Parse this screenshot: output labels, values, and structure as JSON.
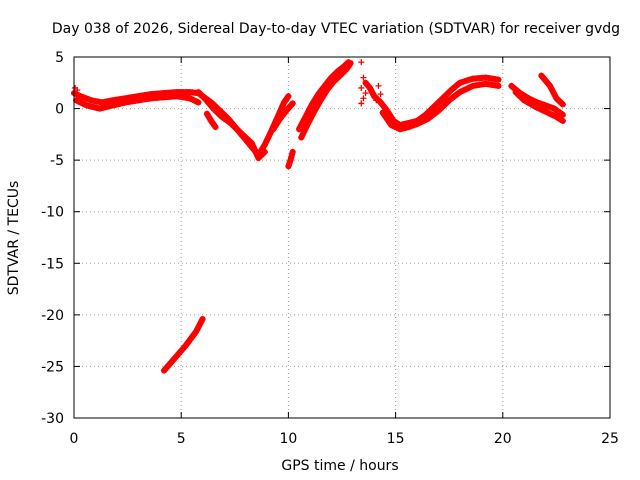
{
  "colors": {
    "series": "#ff0000",
    "grid": "#a0a0a0",
    "axis": "#000000"
  },
  "chart_data": {
    "type": "scatter",
    "title": "Day 038 of 2026, Sidereal Day-to-day VTEC variation (SDTVAR) for receiver gvdg",
    "xlabel": "GPS time / hours",
    "ylabel": "SDTVAR / TECUs",
    "xlim": [
      0,
      25
    ],
    "ylim": [
      -30,
      5
    ],
    "xticks": [
      0,
      5,
      10,
      15,
      20,
      25
    ],
    "yticks": [
      5,
      0,
      -5,
      -10,
      -15,
      -20,
      -25,
      -30
    ],
    "grid": true,
    "marker": "+",
    "series": [
      {
        "name": "SDTVAR",
        "segments": [
          [
            [
              0.0,
              1.5
            ],
            [
              0.3,
              1.2
            ],
            [
              0.8,
              0.8
            ],
            [
              1.3,
              0.6
            ],
            [
              1.8,
              0.8
            ],
            [
              2.4,
              1.0
            ],
            [
              3.0,
              1.2
            ],
            [
              3.6,
              1.4
            ],
            [
              4.2,
              1.5
            ],
            [
              4.8,
              1.6
            ],
            [
              5.4,
              1.6
            ],
            [
              5.8,
              1.5
            ],
            [
              6.0,
              1.2
            ],
            [
              6.4,
              0.6
            ],
            [
              6.8,
              -0.2
            ],
            [
              7.2,
              -1.0
            ],
            [
              7.6,
              -2.0
            ],
            [
              8.0,
              -3.0
            ],
            [
              8.4,
              -4.0
            ],
            [
              8.6,
              -4.5
            ],
            [
              8.9,
              -3.5
            ],
            [
              9.2,
              -2.2
            ],
            [
              9.5,
              -0.8
            ],
            [
              9.8,
              0.6
            ],
            [
              10.0,
              1.2
            ]
          ],
          [
            [
              0.1,
              0.8
            ],
            [
              0.6,
              0.3
            ],
            [
              1.2,
              0.0
            ],
            [
              1.8,
              0.3
            ],
            [
              2.4,
              0.6
            ],
            [
              3.0,
              0.8
            ],
            [
              3.6,
              1.0
            ],
            [
              4.2,
              1.1
            ],
            [
              4.8,
              1.2
            ],
            [
              5.4,
              1.0
            ],
            [
              5.8,
              0.6
            ]
          ],
          [
            [
              5.8,
              1.6
            ],
            [
              6.1,
              1.0
            ],
            [
              6.5,
              0.0
            ],
            [
              6.9,
              -0.8
            ],
            [
              7.3,
              -1.4
            ],
            [
              7.8,
              -2.4
            ],
            [
              8.3,
              -3.4
            ],
            [
              8.6,
              -4.8
            ],
            [
              8.9,
              -4.2
            ]
          ],
          [
            [
              6.2,
              -0.5
            ],
            [
              6.4,
              -1.2
            ],
            [
              6.6,
              -1.8
            ]
          ],
          [
            [
              9.3,
              -2.0
            ],
            [
              9.6,
              -1.0
            ],
            [
              9.9,
              -0.2
            ],
            [
              10.2,
              0.5
            ]
          ],
          [
            [
              10.6,
              -2.8
            ],
            [
              10.9,
              -1.5
            ],
            [
              11.2,
              -0.3
            ],
            [
              11.5,
              0.8
            ],
            [
              11.8,
              1.8
            ],
            [
              12.1,
              2.6
            ],
            [
              12.4,
              3.2
            ],
            [
              12.7,
              3.8
            ],
            [
              12.9,
              4.4
            ]
          ],
          [
            [
              10.5,
              -2.0
            ],
            [
              10.8,
              -0.8
            ],
            [
              11.1,
              0.4
            ],
            [
              11.4,
              1.4
            ],
            [
              11.7,
              2.2
            ],
            [
              12.0,
              3.0
            ],
            [
              12.3,
              3.6
            ],
            [
              12.6,
              4.1
            ],
            [
              12.8,
              4.5
            ]
          ],
          [
            [
              10.2,
              -4.2
            ],
            [
              10.1,
              -5.0
            ],
            [
              10.0,
              -5.6
            ]
          ],
          [
            [
              13.6,
              2.5
            ],
            [
              13.8,
              2.0
            ],
            [
              14.0,
              1.2
            ],
            [
              14.3,
              0.6
            ],
            [
              14.6,
              -0.2
            ],
            [
              14.9,
              -1.2
            ],
            [
              15.2,
              -1.6
            ],
            [
              15.6,
              -1.4
            ],
            [
              16.0,
              -1.2
            ],
            [
              16.4,
              -0.6
            ],
            [
              16.8,
              0.2
            ],
            [
              17.2,
              1.0
            ],
            [
              17.6,
              1.8
            ],
            [
              18.0,
              2.5
            ],
            [
              18.6,
              2.9
            ],
            [
              19.2,
              3.0
            ],
            [
              19.8,
              2.8
            ]
          ],
          [
            [
              14.4,
              -0.4
            ],
            [
              14.8,
              -1.6
            ],
            [
              15.2,
              -2.0
            ],
            [
              15.6,
              -1.8
            ],
            [
              16.0,
              -1.5
            ],
            [
              16.5,
              -1.0
            ],
            [
              17.0,
              -0.2
            ],
            [
              17.5,
              0.8
            ],
            [
              18.0,
              1.6
            ],
            [
              18.6,
              2.2
            ],
            [
              19.2,
              2.4
            ],
            [
              19.8,
              2.2
            ]
          ],
          [
            [
              20.4,
              2.2
            ],
            [
              20.8,
              1.5
            ],
            [
              21.2,
              1.0
            ],
            [
              21.6,
              0.6
            ],
            [
              22.0,
              0.3
            ],
            [
              22.4,
              0.0
            ],
            [
              22.8,
              -0.6
            ]
          ],
          [
            [
              20.6,
              1.6
            ],
            [
              21.0,
              0.8
            ],
            [
              21.5,
              0.2
            ],
            [
              22.0,
              -0.3
            ],
            [
              22.5,
              -0.8
            ],
            [
              22.8,
              -1.2
            ]
          ],
          [
            [
              21.8,
              3.2
            ],
            [
              22.2,
              2.2
            ],
            [
              22.5,
              1.0
            ],
            [
              22.8,
              0.4
            ]
          ],
          [
            [
              4.2,
              -25.4
            ],
            [
              4.7,
              -24.2
            ],
            [
              5.2,
              -23.0
            ],
            [
              5.7,
              -21.6
            ],
            [
              6.0,
              -20.4
            ]
          ]
        ],
        "points": [
          [
            13.4,
            4.5
          ],
          [
            13.5,
            3.0
          ],
          [
            13.4,
            2.0
          ],
          [
            13.5,
            1.0
          ],
          [
            13.4,
            0.5
          ],
          [
            13.6,
            1.5
          ],
          [
            14.2,
            2.2
          ],
          [
            14.3,
            1.4
          ],
          [
            14.1,
            0.8
          ],
          [
            0.05,
            2.0
          ],
          [
            0.15,
            1.8
          ]
        ]
      }
    ]
  }
}
